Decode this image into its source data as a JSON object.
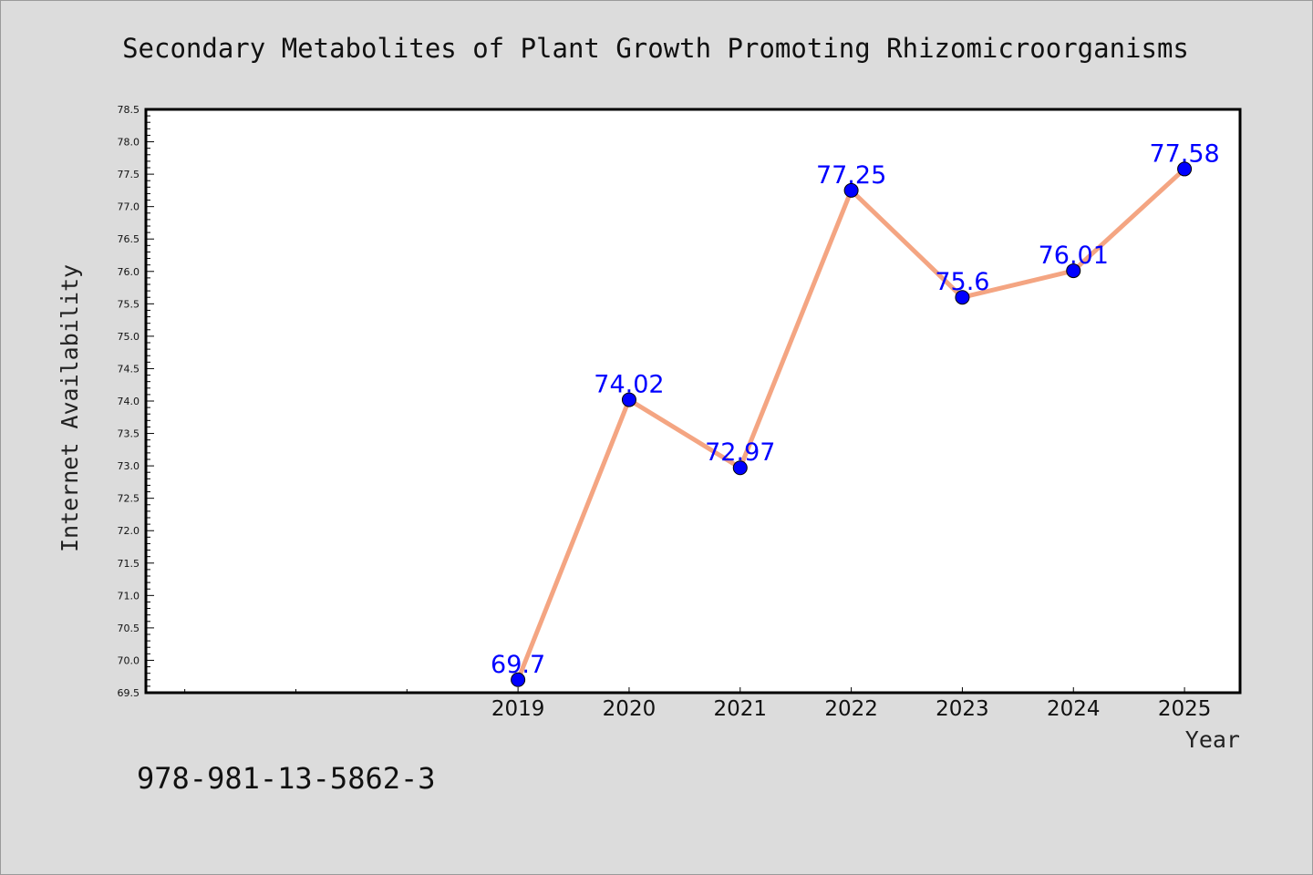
{
  "chart_data": {
    "type": "line",
    "title": "Secondary Metabolites of Plant Growth Promoting Rhizomicroorganisms",
    "xlabel": "Year",
    "ylabel": "Internet Availability",
    "x": [
      2019,
      2020,
      2021,
      2022,
      2023,
      2024,
      2025
    ],
    "x_tick_labels": [
      "2019",
      "2020",
      "2021",
      "2022",
      "2023",
      "2024",
      "2025"
    ],
    "xlim": [
      2015.65,
      2025.5
    ],
    "ylim": [
      69.5,
      78.5
    ],
    "y_ticks": [
      69.5,
      70.0,
      70.5,
      71.0,
      71.5,
      72.0,
      72.5,
      73.0,
      73.5,
      74.0,
      74.5,
      75.0,
      75.5,
      76.0,
      76.5,
      77.0,
      77.5,
      78.0,
      78.5
    ],
    "y_tick_labels": [
      "69.5",
      "70.0",
      "70.5",
      "71.0",
      "71.5",
      "72.0",
      "72.5",
      "73.0",
      "73.5",
      "74.0",
      "74.5",
      "75.0",
      "75.5",
      "76.0",
      "76.5",
      "77.0",
      "77.5",
      "78.0",
      "78.5"
    ],
    "series": [
      {
        "values": [
          69.7,
          74.02,
          72.97,
          77.25,
          75.6,
          76.01,
          77.58
        ],
        "data_labels": [
          "69.7",
          "74.02",
          "72.97",
          "77.25",
          "75.6",
          "76.01",
          "77.58"
        ],
        "line_color": "#f4a582",
        "marker_color": "#0000ff"
      }
    ],
    "grid": false,
    "legend": "none"
  },
  "annotation": "978-981-13-5862-3",
  "colors": {
    "background": "#dcdcdc",
    "plot_background": "#ffffff",
    "axis": "#000000",
    "label_color": "#0000ff"
  }
}
